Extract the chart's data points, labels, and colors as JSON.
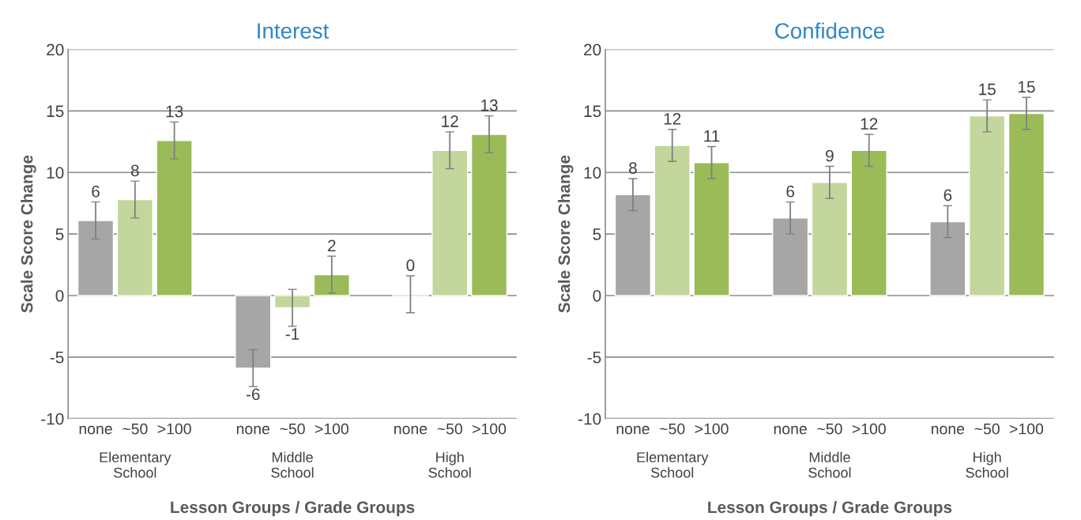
{
  "chart_data": [
    {
      "type": "bar",
      "title": "Interest",
      "xlabel": "Lesson Groups / Grade Groups",
      "ylabel": "Scale Score Change",
      "categories": [
        "none",
        "~50",
        ">100",
        null,
        "none",
        "~50",
        ">100",
        null,
        "none",
        "~50",
        ">100"
      ],
      "values": [
        6.1,
        7.8,
        12.6,
        null,
        -5.9,
        -1.0,
        1.7,
        null,
        0.1,
        11.8,
        13.1
      ],
      "colors": [
        "#a6a6a6",
        "#c3d69b",
        "#9bbb59",
        null,
        "#a6a6a6",
        "#c3d69b",
        "#9bbb59",
        null,
        "#a6a6a6",
        "#c3d69b",
        "#9bbb59"
      ],
      "errors": [
        1.5,
        1.5,
        1.5,
        null,
        1.5,
        1.5,
        1.5,
        null,
        1.5,
        1.5,
        1.5
      ],
      "value_labels": [
        "6",
        "8",
        "13",
        null,
        "-6",
        "-1",
        "2",
        null,
        "0",
        "12",
        "13"
      ],
      "annotations": [
        "Elementary\nSchool",
        "Middle\nSchool",
        "High\nSchool"
      ],
      "ylim": [
        -10,
        20
      ],
      "yticks": [
        -10,
        -5,
        0,
        5,
        10,
        15,
        20
      ],
      "grid": "y"
    },
    {
      "type": "bar",
      "title": "Confidence",
      "xlabel": "Lesson Groups / Grade Groups",
      "ylabel": "Scale Score Change",
      "categories": [
        "none",
        "~50",
        ">100",
        null,
        "none",
        "~50",
        ">100",
        null,
        "none",
        "~50",
        ">100"
      ],
      "values": [
        8.2,
        12.2,
        10.8,
        null,
        6.3,
        9.2,
        11.8,
        null,
        6.0,
        14.6,
        14.8
      ],
      "colors": [
        "#a6a6a6",
        "#c3d69b",
        "#9bbb59",
        null,
        "#a6a6a6",
        "#c3d69b",
        "#9bbb59",
        null,
        "#a6a6a6",
        "#c3d69b",
        "#9bbb59"
      ],
      "errors": [
        1.3,
        1.3,
        1.3,
        null,
        1.3,
        1.3,
        1.3,
        null,
        1.3,
        1.3,
        1.3
      ],
      "value_labels": [
        "8",
        "12",
        "11",
        null,
        "6",
        "9",
        "12",
        null,
        "6",
        "15",
        "15"
      ],
      "annotations": [
        "Elementary\nSchool",
        "Middle\nSchool",
        "High\nSchool"
      ],
      "ylim": [
        -10,
        20
      ],
      "yticks": [
        -10,
        -5,
        0,
        5,
        10,
        15,
        20
      ],
      "grid": "y"
    }
  ]
}
